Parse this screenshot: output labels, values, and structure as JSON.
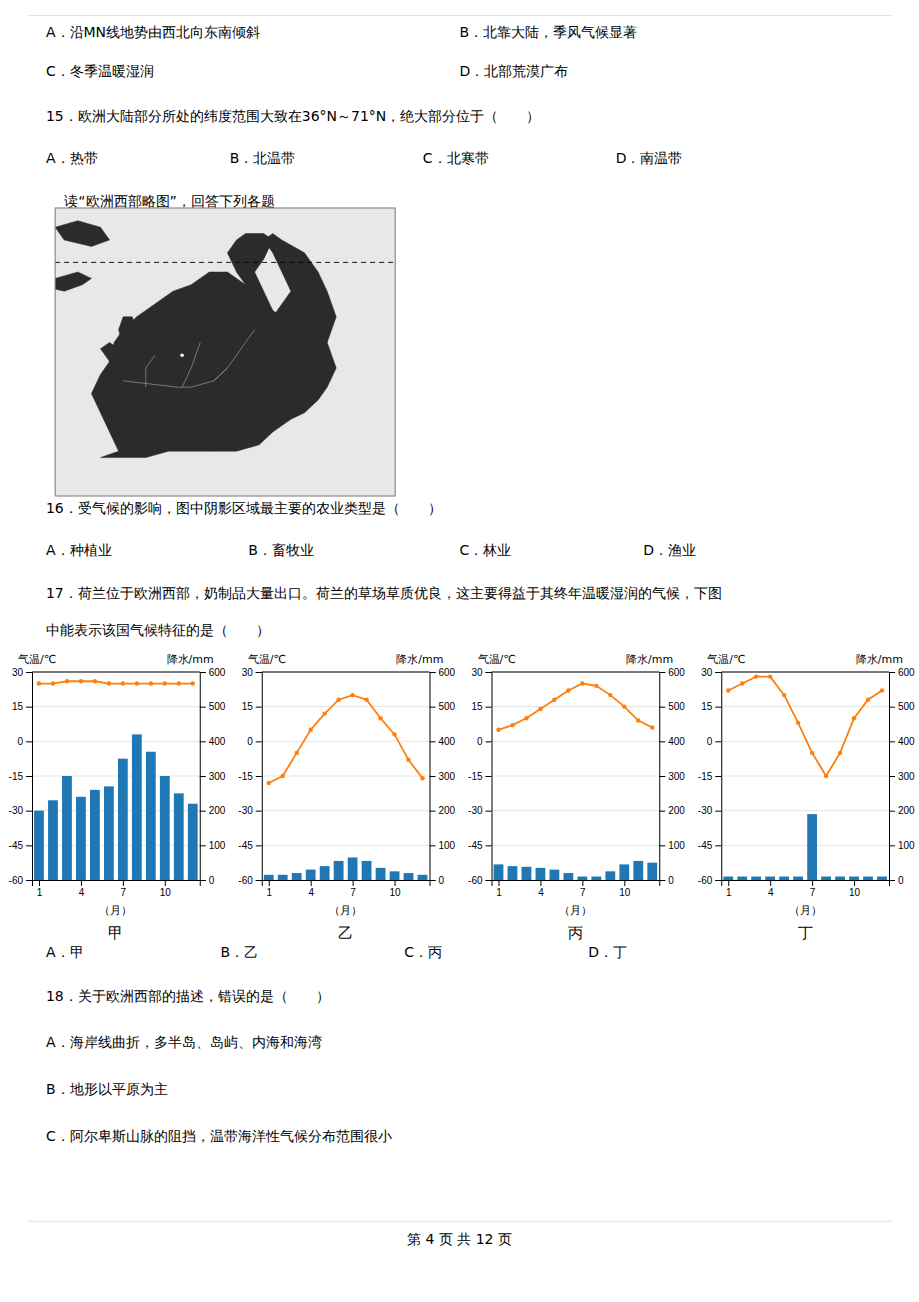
{
  "chart_data": [
    {
      "type": "map",
      "xlim": [
        -20,
        55
      ],
      "ylim": [
        30,
        75
      ],
      "tick_labels": false,
      "series": [
        {
          "type": "polygon",
          "x": [
            -10,
            -5,
            0,
            5,
            10,
            15,
            20,
            25,
            28,
            32,
            35,
            38,
            40,
            42,
            40,
            36,
            30,
            26,
            22,
            18,
            14,
            10,
            6,
            2,
            -2,
            -5,
            -7,
            -8,
            -10,
            -12,
            -10,
            -8,
            -6,
            -10
          ],
          "values": [
            36,
            36,
            36,
            37,
            37,
            37,
            37,
            38,
            40,
            42,
            43,
            45,
            47,
            50,
            54,
            56,
            58,
            60,
            63,
            65,
            65,
            63,
            62,
            60,
            58,
            56,
            54,
            51,
            49,
            46,
            43,
            40,
            37,
            36
          ]
        },
        {
          "type": "polygon",
          "x": [
            5,
            7,
            10,
            12,
            16,
            18,
            20,
            22,
            20,
            18,
            20,
            22,
            26,
            28,
            26,
            24,
            26,
            28,
            26,
            22,
            16,
            10,
            5
          ],
          "values": [
            57,
            57,
            57,
            56,
            57,
            58,
            60,
            63,
            65,
            68,
            70,
            71,
            71,
            70,
            67,
            65,
            62,
            59,
            57,
            56,
            56,
            57,
            57
          ]
        },
        {
          "type": "polygon",
          "x": [
            22,
            25,
            28,
            30,
            32,
            30,
            28,
            26,
            28,
            30,
            35,
            38,
            40,
            42,
            40
          ],
          "values": [
            56,
            57,
            58,
            60,
            62,
            65,
            68,
            70,
            71,
            70,
            68,
            65,
            62,
            58,
            54
          ]
        },
        {
          "type": "polygon",
          "x": [
            -5,
            -3,
            -1,
            1,
            0,
            -2,
            -3,
            -5,
            -6,
            -5,
            -4,
            -5
          ],
          "values": [
            50,
            50,
            51,
            52,
            54,
            56,
            58,
            58,
            56,
            53,
            51,
            50
          ]
        },
        {
          "type": "polygon",
          "x": [
            -8,
            -6,
            -6,
            -8,
            -10,
            -8
          ],
          "values": [
            51,
            51,
            53,
            54,
            53,
            51
          ]
        },
        {
          "type": "polygon",
          "x": [
            -24,
            -20,
            -15,
            -12,
            -14,
            -18,
            -24
          ],
          "values": [
            63,
            64,
            65,
            64,
            63,
            62,
            63
          ]
        },
        {
          "type": "polygon",
          "x": [
            -20,
            -15,
            -10,
            -8,
            -12,
            -18,
            -20
          ],
          "values": [
            72,
            73,
            72,
            70,
            69,
            70,
            72
          ]
        },
        {
          "type": "line",
          "line_style": "dashed",
          "x": [
            -20,
            55
          ],
          "values": [
            66.5,
            66.5
          ]
        },
        {
          "type": "polygon",
          "x": [
            7,
            10,
            14,
            16,
            16,
            15,
            14,
            12,
            10,
            8,
            7
          ],
          "values": [
            44,
            44,
            44,
            41,
            38,
            37,
            38,
            40,
            42,
            44,
            44
          ]
        },
        {
          "type": "scatter",
          "marker": "circle",
          "x": [
            8
          ],
          "values": [
            52
          ]
        },
        {
          "type": "line",
          "x": [
            -5,
            7,
            10,
            15,
            18
          ],
          "values": [
            48,
            47,
            47,
            48,
            50
          ]
        },
        {
          "type": "line",
          "x": [
            0,
            0,
            2
          ],
          "values": [
            47,
            50,
            52
          ]
        },
        {
          "type": "line",
          "x": [
            8,
            10,
            12
          ],
          "values": [
            47,
            50,
            54
          ]
        },
        {
          "type": "line",
          "x": [
            15,
            18,
            22,
            24
          ],
          "values": [
            48,
            50,
            54,
            56
          ]
        }
      ]
    },
    {
      "type": "bar",
      "title": "甲",
      "x": [
        1,
        2,
        3,
        4,
        5,
        6,
        7,
        8,
        9,
        10,
        11,
        12
      ],
      "xlim": [
        0.5,
        12.5
      ],
      "xticks": [
        1,
        4,
        7,
        10
      ],
      "xlabel": "（月）",
      "ylabel": "气温/℃",
      "ylim": [
        -60,
        30
      ],
      "yticks": [
        30,
        15,
        0,
        -15,
        -30,
        -45,
        -60
      ],
      "y2label": "降水/mm",
      "y2lim": [
        0,
        600
      ],
      "y2ticks": [
        600,
        500,
        400,
        300,
        200,
        100,
        0
      ],
      "grid": true,
      "series": [
        {
          "type": "line",
          "marker": "circle",
          "values": [
            25,
            25,
            26,
            26,
            26,
            25,
            25,
            25,
            25,
            25,
            25,
            25
          ]
        },
        {
          "type": "bar",
          "axis": "y2",
          "values": [
            200,
            230,
            300,
            240,
            260,
            270,
            350,
            420,
            370,
            300,
            250,
            220
          ]
        }
      ]
    },
    {
      "type": "bar",
      "title": "乙",
      "x": [
        1,
        2,
        3,
        4,
        5,
        6,
        7,
        8,
        9,
        10,
        11,
        12
      ],
      "xlim": [
        0.5,
        12.5
      ],
      "xticks": [
        1,
        4,
        7,
        10
      ],
      "xlabel": "（月）",
      "ylabel": "气温/℃",
      "ylim": [
        -60,
        30
      ],
      "yticks": [
        30,
        15,
        0,
        -15,
        -30,
        -45,
        -60
      ],
      "y2label": "降水/mm",
      "y2lim": [
        0,
        600
      ],
      "y2ticks": [
        600,
        500,
        400,
        300,
        200,
        100,
        0
      ],
      "grid": true,
      "series": [
        {
          "type": "line",
          "marker": "circle",
          "values": [
            -18,
            -15,
            -5,
            5,
            12,
            18,
            20,
            18,
            10,
            3,
            -8,
            -16
          ]
        },
        {
          "type": "bar",
          "axis": "y2",
          "values": [
            15,
            15,
            20,
            30,
            40,
            55,
            65,
            55,
            35,
            25,
            20,
            15
          ]
        }
      ]
    },
    {
      "type": "bar",
      "title": "丙",
      "x": [
        1,
        2,
        3,
        4,
        5,
        6,
        7,
        8,
        9,
        10,
        11,
        12
      ],
      "xlim": [
        0.5,
        12.5
      ],
      "xticks": [
        1,
        4,
        7,
        10
      ],
      "xlabel": "（月）",
      "ylabel": "气温/℃",
      "ylim": [
        -60,
        30
      ],
      "yticks": [
        30,
        15,
        0,
        -15,
        -30,
        -45,
        -60
      ],
      "y2label": "降水/mm",
      "y2lim": [
        0,
        600
      ],
      "y2ticks": [
        600,
        500,
        400,
        300,
        200,
        100,
        0
      ],
      "grid": true,
      "series": [
        {
          "type": "line",
          "marker": "circle",
          "values": [
            5,
            7,
            10,
            14,
            18,
            22,
            25,
            24,
            20,
            15,
            9,
            6
          ]
        },
        {
          "type": "bar",
          "axis": "y2",
          "values": [
            45,
            40,
            38,
            35,
            30,
            20,
            10,
            10,
            25,
            45,
            55,
            50
          ]
        }
      ]
    },
    {
      "type": "bar",
      "title": "丁",
      "x": [
        1,
        2,
        3,
        4,
        5,
        6,
        7,
        8,
        9,
        10,
        11,
        12
      ],
      "xlim": [
        0.5,
        12.5
      ],
      "xticks": [
        1,
        4,
        7,
        10
      ],
      "xlabel": "（月）",
      "ylabel": "气温/℃",
      "ylim": [
        -60,
        30
      ],
      "yticks": [
        30,
        15,
        0,
        -15,
        -30,
        -45,
        -60
      ],
      "y2label": "降水/mm",
      "y2lim": [
        0,
        600
      ],
      "y2ticks": [
        600,
        500,
        400,
        300,
        200,
        100,
        0
      ],
      "grid": true,
      "series": [
        {
          "type": "line",
          "marker": "circle",
          "values": [
            22,
            25,
            28,
            28,
            20,
            8,
            -5,
            -15,
            -5,
            10,
            18,
            22
          ]
        },
        {
          "type": "bar",
          "axis": "y2",
          "values": [
            10,
            10,
            10,
            10,
            10,
            10,
            190,
            10,
            10,
            10,
            10,
            10
          ]
        }
      ]
    }
  ],
  "annotations": [
    "A．沿MN线地势由西北向东南倾斜",
    "B．北靠大陆，季风气候显著",
    "C．冬季温暖湿润",
    "D．北部荒漠广布",
    "15．欧洲大陆部分所处的纬度范围大致在36°N～71°N，绝大部分位于（　　）",
    "A．热带",
    "B．北温带",
    "C．北寒带",
    "D．南温带",
    "读“欧洲西部略图”，回答下列各题",
    "16．受气候的影响，图中阴影区域最主要的农业类型是（　　）",
    "A．种植业",
    "B．畜牧业",
    "C．林业",
    "D．渔业",
    "17．荷兰位于欧洲西部，奶制品大量出口。荷兰的草场草质优良，这主要得益于其终年温暖湿润的气候，下图",
    "中能表示该国气候特征的是（　　）",
    "A．甲",
    "B．乙",
    "C．丙",
    "D．丁",
    "18．关于欧洲西部的描述，错误的是（　　）",
    "A．海岸线曲折，多半岛、岛屿、内海和海湾",
    "B．地形以平原为主",
    "C．阿尔卑斯山脉的阻挡，温带海洋性气候分布范围很小",
    "第 4 页 共 12 页"
  ]
}
